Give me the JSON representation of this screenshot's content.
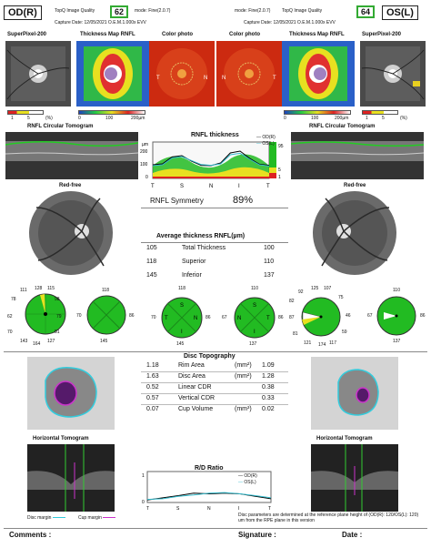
{
  "header": {
    "od_label": "OD(R)",
    "os_label": "OS(L)",
    "od_quality_label": "TopQ Image Quality",
    "od_quality": "62",
    "od_mode": "mode: Fine(2.0.7)",
    "os_mode": "mode: Fine(2.0.7)",
    "os_quality_label": "TopQ Image Quality",
    "os_quality": "64",
    "od_capture": "Capture Date: 12/05/2021 O.E.M.1.000x   EVV",
    "os_capture": "Capture Date: 12/05/2021 O.E.M.1.000x   EVV"
  },
  "images": {
    "superpixel": "SuperPixel-200",
    "thickness_map": "Thickness Map RNFL",
    "color_photo": "Color photo",
    "t": "T",
    "n": "N"
  },
  "scales": {
    "sp": [
      "1",
      "5",
      "(%)"
    ],
    "tm": [
      "0",
      "100",
      "200µm"
    ]
  },
  "tomogram": {
    "title": "RNFL Circular Tomogram"
  },
  "rnfl_chart": {
    "title": "RNFL thickness",
    "legend_od": "OD(R)",
    "legend_os": "OS(L)",
    "unit": "µm",
    "y_ticks": [
      "200",
      "100",
      "0"
    ],
    "x_ticks": [
      "T",
      "S",
      "N",
      "I",
      "T"
    ],
    "pct": [
      "95",
      "5",
      "1"
    ],
    "od_values": [
      75,
      80,
      118,
      125,
      95,
      72,
      70,
      85,
      140,
      150,
      110,
      78,
      72
    ],
    "os_values": [
      70,
      75,
      112,
      120,
      98,
      76,
      72,
      80,
      130,
      138,
      105,
      75,
      68
    ]
  },
  "symmetry": {
    "label": "RNFL Symmetry",
    "value": "89%"
  },
  "redfree": {
    "label": "Red-free"
  },
  "avg": {
    "title": "Average thickness RNFL(µm)",
    "rows": [
      {
        "od": "105",
        "label": "Total Thickness",
        "os": "100"
      },
      {
        "od": "118",
        "label": "Superior",
        "os": "110"
      },
      {
        "od": "145",
        "label": "Inferior",
        "os": "137"
      }
    ]
  },
  "clocks": {
    "od12": [
      "128",
      "115",
      "98",
      "79",
      "81",
      "127",
      "164",
      "143",
      "70",
      "62",
      "78",
      "111"
    ],
    "od_quad": [
      "118",
      "86",
      "145",
      "70"
    ],
    "os_quad": [
      "110",
      "67",
      "137",
      "86"
    ],
    "os12": [
      "107",
      "75",
      "46",
      "59",
      "117",
      "174",
      "121",
      "81",
      "87",
      "82",
      "92",
      "125"
    ],
    "sn": [
      "S",
      "N",
      "I",
      "T"
    ],
    "ti": [
      "T",
      "N",
      "S",
      "I"
    ]
  },
  "disc": {
    "title": "Disc Topography",
    "rows": [
      {
        "od": "1.18",
        "label": "Rim Area",
        "unit": "(mm²)",
        "os": "1.09"
      },
      {
        "od": "1.63",
        "label": "Disc Area",
        "unit": "(mm²)",
        "os": "1.28"
      },
      {
        "od": "0.52",
        "label": "Linear CDR",
        "unit": "",
        "os": "0.38"
      },
      {
        "od": "0.57",
        "label": "Vertical CDR",
        "unit": "",
        "os": "0.33"
      },
      {
        "od": "0.07",
        "label": "Cup Volume",
        "unit": "(mm³)",
        "os": "0.02"
      }
    ]
  },
  "htomo": {
    "title": "Horizontal Tomogram"
  },
  "rd": {
    "title": "R/D Ratio",
    "legend_od": "OD(R)",
    "legend_os": "OS(L)",
    "x_ticks": [
      "T",
      "S",
      "N",
      "I",
      "T"
    ],
    "y_ticks": [
      "1",
      "0"
    ],
    "od_values": [
      0.08,
      0.15,
      0.22,
      0.3,
      0.28,
      0.3,
      0.28,
      0.2,
      0.12
    ],
    "os_values": [
      0.1,
      0.12,
      0.2,
      0.24,
      0.3,
      0.32,
      0.28,
      0.22,
      0.15
    ]
  },
  "footer": {
    "disc_margin": "Disc margin",
    "cup_margin": "Cup margin",
    "note": "Disc parameters are determined at the reference plane height of (OD(R): 120/OS(L): 120) um from the RPE plane in this version",
    "comments": "Comments :",
    "signature": "Signature :",
    "date": "Date :"
  },
  "colors": {
    "green": "#22bb22",
    "red": "#dd2222",
    "cyan": "#33ccdd",
    "magenta": "#cc33cc"
  }
}
